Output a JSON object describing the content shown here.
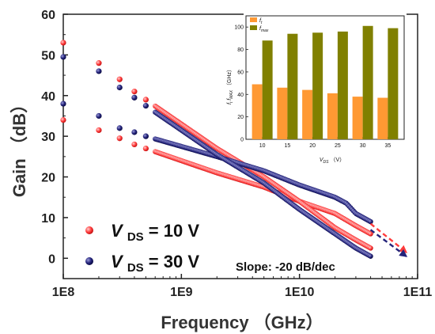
{
  "colors": {
    "red": "#ff3b3b",
    "blue": "#23237a",
    "ft": "#ff9933",
    "fmax": "#808000",
    "axis": "#222222"
  },
  "chart_data": [
    {
      "type": "scatter",
      "x_scale": "log",
      "xlabel": "Frequency （GHz）",
      "ylabel": "Gain （dB）",
      "xlim": [
        100000000,
        100000000000
      ],
      "ylim": [
        -5,
        60
      ],
      "x_ticks": [
        "1E8",
        "1E9",
        "1E10",
        "1E11"
      ],
      "y_ticks": [
        "0",
        "10",
        "20",
        "30",
        "40",
        "50",
        "60"
      ],
      "legend": {
        "placement": "bottom-left",
        "entries": [
          {
            "symbol": "V",
            "subscript": "DS",
            "text": "= 10 V",
            "color": "#ff3b3b"
          },
          {
            "symbol": "V",
            "subscript": "DS",
            "text": "= 30 V",
            "color": "#23237a"
          }
        ]
      },
      "annotation": "Slope: -20 dB/dec",
      "series": [
        {
          "color": "#ff3b3b",
          "x": [
            100000000,
            200000000,
            300000000,
            400000000,
            500000000,
            1000000000,
            2000000000,
            5000000000,
            10000000000,
            20000000000,
            30000000000,
            40000000000
          ],
          "y": [
            34,
            31.5,
            29.5,
            28,
            27,
            24,
            21,
            17.5,
            14,
            11,
            8,
            6
          ]
        },
        {
          "color": "#ff3b3b",
          "x": [
            100000000,
            200000000,
            300000000,
            400000000,
            500000000,
            1000000000,
            2000000000,
            5000000000,
            10000000000,
            20000000000,
            30000000000,
            40000000000
          ],
          "y": [
            53,
            48,
            44,
            41,
            39,
            33,
            27,
            20,
            14,
            7.5,
            4.5,
            2.5
          ]
        },
        {
          "color": "#23237a",
          "x": [
            100000000,
            200000000,
            300000000,
            400000000,
            500000000,
            1000000000,
            2000000000,
            5000000000,
            10000000000,
            20000000000,
            25000000000,
            30000000000,
            40000000000
          ],
          "y": [
            38,
            35,
            32,
            31,
            30,
            27.5,
            25,
            21.5,
            18,
            15,
            13.5,
            11,
            9
          ]
        },
        {
          "color": "#23237a",
          "x": [
            100000000,
            200000000,
            300000000,
            400000000,
            500000000,
            1000000000,
            2000000000,
            5000000000,
            10000000000,
            20000000000,
            30000000000,
            40000000000
          ],
          "y": [
            49.5,
            46,
            42,
            39.5,
            37.5,
            31.5,
            25.5,
            18.5,
            12,
            6,
            2.5,
            0.5
          ]
        }
      ],
      "extrapolation": [
        {
          "color": "#ff3b3b",
          "from": [
            40000000000,
            8.5
          ],
          "to": [
            80000000000,
            1.5
          ]
        },
        {
          "color": "#23237a",
          "from": [
            40000000000,
            7.0
          ],
          "to": [
            80000000000,
            0.5
          ]
        }
      ]
    },
    {
      "type": "bar",
      "xlabel": "V_DS （V）",
      "ylabel": "f_t  f_MAX （GHz）",
      "categories": [
        "10",
        "15",
        "20",
        "25",
        "30",
        "35"
      ],
      "ylim": [
        0,
        110
      ],
      "y_ticks": [
        "0",
        "20",
        "40",
        "60",
        "80",
        "100"
      ],
      "legend": {
        "placement": "top-left"
      },
      "series": [
        {
          "name": "f_t",
          "color": "#ff9933",
          "values": [
            49,
            46,
            44,
            41,
            38,
            37
          ]
        },
        {
          "name": "f_max",
          "color": "#808000",
          "values": [
            88,
            94,
            95,
            96,
            101,
            99
          ]
        }
      ]
    }
  ]
}
